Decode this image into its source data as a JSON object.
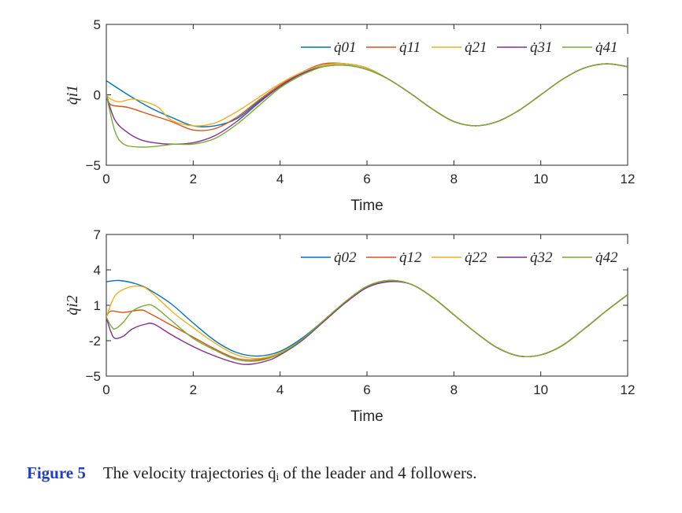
{
  "caption": {
    "figure_number": "Figure 5",
    "text": "The velocity trajectories q̇ᵢ of the leader and 4 followers."
  },
  "colors": [
    "#0072BD",
    "#D95319",
    "#EDB120",
    "#7E2F8E",
    "#77AC30"
  ],
  "chart_data": [
    {
      "type": "line",
      "xlabel": "Time",
      "ylabel": "q̇i1",
      "xlim": [
        0,
        12
      ],
      "ylim": [
        -5,
        5
      ],
      "xticks": [
        "0",
        "2",
        "4",
        "6",
        "8",
        "10",
        "12"
      ],
      "yticks": [
        "−5",
        "0",
        "5"
      ],
      "ytick_values": [
        -5,
        0,
        5
      ],
      "legend_position": "top-right",
      "series": [
        {
          "name": "q̇01",
          "x": [
            0,
            0.5,
            1,
            1.5,
            2,
            2.5,
            3,
            3.5,
            4,
            4.5,
            5,
            5.5,
            6,
            6.5,
            7,
            7.5,
            8,
            8.5,
            9,
            9.5,
            10,
            10.5,
            11,
            11.5,
            12
          ],
          "values": [
            1.0,
            0.0,
            -0.9,
            -1.6,
            -2.2,
            -2.2,
            -1.7,
            -0.5,
            0.6,
            1.5,
            2.1,
            2.2,
            1.9,
            1.1,
            0.1,
            -1.0,
            -1.9,
            -2.2,
            -1.9,
            -1.1,
            0.0,
            1.1,
            1.9,
            2.2,
            2.0
          ]
        },
        {
          "name": "q̇11",
          "x": [
            0,
            0.1,
            0.5,
            1,
            1.5,
            2,
            2.5,
            3,
            3.5,
            4,
            4.5,
            5,
            5.5,
            6,
            6.5,
            7,
            7.5,
            8,
            8.5,
            9,
            9.5,
            10,
            10.5,
            11,
            11.5,
            12
          ],
          "values": [
            0,
            -0.7,
            -0.9,
            -1.4,
            -1.9,
            -2.5,
            -2.4,
            -1.6,
            -0.4,
            0.7,
            1.6,
            2.2,
            2.2,
            1.9,
            1.1,
            0.1,
            -1.0,
            -1.9,
            -2.2,
            -1.9,
            -1.1,
            0.0,
            1.1,
            1.9,
            2.2,
            2.0
          ]
        },
        {
          "name": "q̇21",
          "x": [
            0,
            0.1,
            0.3,
            0.6,
            0.9,
            1.2,
            1.5,
            2,
            2.5,
            3,
            3.5,
            4,
            4.5,
            5,
            5.5,
            6,
            6.5,
            7,
            7.5,
            8,
            8.5,
            9,
            9.5,
            10,
            10.5,
            11,
            11.5,
            12
          ],
          "values": [
            0,
            -0.3,
            -0.5,
            -0.3,
            -0.5,
            -0.9,
            -1.8,
            -2.2,
            -2.0,
            -1.2,
            -0.2,
            0.8,
            1.6,
            2.1,
            2.2,
            1.9,
            1.1,
            0.1,
            -1.0,
            -1.9,
            -2.2,
            -1.9,
            -1.1,
            0.0,
            1.1,
            1.9,
            2.2,
            2.0
          ]
        },
        {
          "name": "q̇31",
          "x": [
            0,
            0.2,
            0.5,
            0.8,
            1.1,
            1.5,
            2,
            2.5,
            3,
            3.5,
            4,
            4.5,
            5,
            5.5,
            6,
            6.5,
            7,
            7.5,
            8,
            8.5,
            9,
            9.5,
            10,
            10.5,
            11,
            11.5,
            12
          ],
          "values": [
            0,
            -1.8,
            -2.7,
            -3.2,
            -3.4,
            -3.5,
            -3.4,
            -2.9,
            -1.9,
            -0.6,
            0.6,
            1.5,
            2.0,
            2.1,
            1.8,
            1.1,
            0.1,
            -1.0,
            -1.9,
            -2.2,
            -1.9,
            -1.1,
            0.0,
            1.1,
            1.9,
            2.2,
            2.0
          ]
        },
        {
          "name": "q̇41",
          "x": [
            0,
            0.2,
            0.4,
            0.7,
            1.0,
            1.3,
            1.6,
            2,
            2.5,
            3,
            3.5,
            4,
            4.5,
            5,
            5.5,
            6,
            6.5,
            7,
            7.5,
            8,
            8.5,
            9,
            9.5,
            10,
            10.5,
            11,
            11.5,
            12
          ],
          "values": [
            0,
            -2.6,
            -3.5,
            -3.7,
            -3.7,
            -3.6,
            -3.5,
            -3.5,
            -3.1,
            -2.1,
            -0.8,
            0.5,
            1.4,
            2.0,
            2.1,
            1.8,
            1.1,
            0.1,
            -1.0,
            -1.9,
            -2.2,
            -1.9,
            -1.1,
            0.0,
            1.1,
            1.9,
            2.2,
            2.0
          ]
        }
      ]
    },
    {
      "type": "line",
      "xlabel": "Time",
      "ylabel": "q̇i2",
      "xlim": [
        0,
        12
      ],
      "ylim": [
        -5,
        7
      ],
      "xticks": [
        "0",
        "2",
        "4",
        "6",
        "8",
        "10",
        "12"
      ],
      "yticks": [
        "−5",
        "-2",
        "1",
        "4",
        "7"
      ],
      "ytick_values": [
        -5,
        -2,
        1,
        4,
        7
      ],
      "legend_position": "top-right",
      "series": [
        {
          "name": "q̇02",
          "x": [
            0,
            0.3,
            0.7,
            1,
            1.5,
            2,
            2.5,
            3,
            3.5,
            4,
            4.5,
            5,
            5.5,
            6,
            6.5,
            7,
            7.5,
            8,
            8.5,
            9,
            9.5,
            10,
            10.5,
            11,
            11.5,
            12
          ],
          "values": [
            3.0,
            3.1,
            2.8,
            2.3,
            1.1,
            -0.5,
            -2.0,
            -3.0,
            -3.3,
            -2.9,
            -1.8,
            -0.3,
            1.3,
            2.6,
            3.1,
            2.8,
            1.7,
            0.2,
            -1.3,
            -2.6,
            -3.3,
            -3.2,
            -2.4,
            -1.0,
            0.5,
            1.9
          ]
        },
        {
          "name": "q̇12",
          "x": [
            0,
            0.1,
            0.4,
            0.8,
            1.0,
            1.5,
            2,
            2.5,
            3,
            3.5,
            4,
            4.5,
            5,
            5.5,
            6,
            6.5,
            7,
            7.5,
            8,
            8.5,
            9,
            9.5,
            10,
            10.5,
            11,
            11.5,
            12
          ],
          "values": [
            0,
            0.5,
            0.4,
            0.6,
            0.3,
            -0.7,
            -1.7,
            -2.7,
            -3.5,
            -3.6,
            -3.1,
            -1.9,
            -0.3,
            1.3,
            2.6,
            3.1,
            2.8,
            1.7,
            0.2,
            -1.3,
            -2.6,
            -3.3,
            -3.2,
            -2.4,
            -1.0,
            0.5,
            1.9
          ]
        },
        {
          "name": "q̇22",
          "x": [
            0,
            0.2,
            0.5,
            0.8,
            1.0,
            1.3,
            1.6,
            2,
            2.5,
            3,
            3.5,
            4,
            4.5,
            5,
            5.5,
            6,
            6.5,
            7,
            7.5,
            8,
            8.5,
            9,
            9.5,
            10,
            10.5,
            11,
            11.5,
            12
          ],
          "values": [
            0,
            1.8,
            2.5,
            2.6,
            2.2,
            1.2,
            0.2,
            -0.9,
            -2.2,
            -3.2,
            -3.5,
            -3.0,
            -1.9,
            -0.3,
            1.3,
            2.6,
            3.1,
            2.8,
            1.7,
            0.2,
            -1.3,
            -2.6,
            -3.3,
            -3.2,
            -2.4,
            -1.0,
            0.5,
            1.9
          ]
        },
        {
          "name": "q̇32",
          "x": [
            0,
            0.1,
            0.2,
            0.4,
            0.6,
            0.9,
            1.1,
            1.5,
            2,
            2.5,
            3,
            3.3,
            3.7,
            4,
            4.5,
            5,
            5.5,
            6,
            6.5,
            7,
            7.5,
            8,
            8.5,
            9,
            9.5,
            10,
            10.5,
            11,
            11.5,
            12
          ],
          "values": [
            0,
            -1.2,
            -1.8,
            -1.6,
            -1.0,
            -0.6,
            -0.6,
            -1.5,
            -2.5,
            -3.3,
            -3.9,
            -4.0,
            -3.7,
            -3.2,
            -2.0,
            -0.4,
            1.2,
            2.5,
            3.0,
            2.8,
            1.7,
            0.2,
            -1.3,
            -2.6,
            -3.3,
            -3.2,
            -2.4,
            -1.0,
            0.5,
            1.9
          ]
        },
        {
          "name": "q̇42",
          "x": [
            0,
            0.1,
            0.2,
            0.4,
            0.6,
            0.9,
            1.1,
            1.5,
            2,
            2.5,
            3,
            3.5,
            4,
            4.5,
            5,
            5.5,
            6,
            6.5,
            7,
            7.5,
            8,
            8.5,
            9,
            9.5,
            10,
            10.5,
            11,
            11.5,
            12
          ],
          "values": [
            0,
            -0.7,
            -1.0,
            -0.4,
            0.5,
            1.0,
            0.9,
            -0.3,
            -1.8,
            -2.8,
            -3.6,
            -3.7,
            -3.1,
            -1.9,
            -0.3,
            1.3,
            2.6,
            3.1,
            2.8,
            1.7,
            0.2,
            -1.3,
            -2.6,
            -3.3,
            -3.2,
            -2.4,
            -1.0,
            0.5,
            1.9
          ]
        }
      ]
    }
  ]
}
